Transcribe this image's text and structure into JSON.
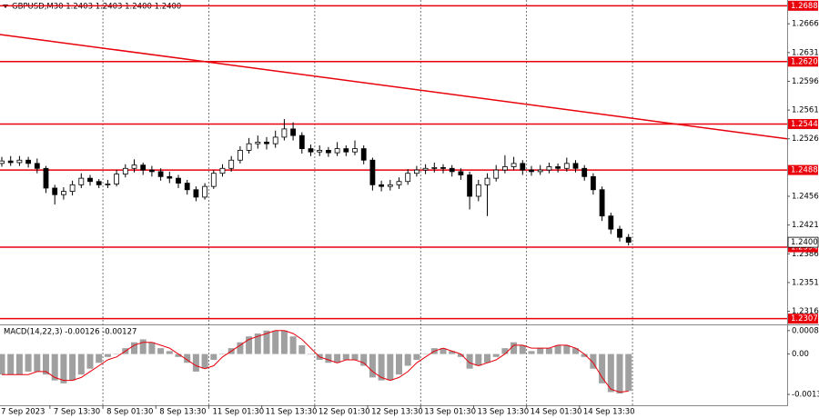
{
  "chart_data": [
    {
      "type": "candlestick",
      "title": "GBPUSD,M30  1.2403 1.2403 1.2400 1.2400",
      "x_labels": [
        "7 Sep 2023",
        "7 Sep 13:30",
        "8 Sep 01:30",
        "8 Sep 13:30",
        "11 Sep 01:30",
        "11 Sep 13:30",
        "12 Sep 01:30",
        "12 Sep 13:30",
        "13 Sep 01:30",
        "13 Sep 13:30",
        "14 Sep 01:30",
        "14 Sep 13:30",
        null
      ],
      "open": [
        1.2496,
        1.2499,
        1.2497,
        1.25,
        1.2496,
        1.249,
        1.2466,
        1.2458,
        1.2462,
        1.247,
        1.2478,
        1.2474,
        1.247,
        1.2471,
        1.2483,
        1.249,
        1.2494,
        1.2488,
        1.2486,
        1.248,
        1.2478,
        1.2472,
        1.2464,
        1.2455,
        1.2468,
        1.2484,
        1.249,
        1.25,
        1.2512,
        1.252,
        1.2522,
        1.252,
        1.2528,
        1.2538,
        1.253,
        1.2514,
        1.251,
        1.2512,
        1.2509,
        1.2514,
        1.251,
        1.2514,
        1.25,
        1.247,
        1.2468,
        1.247,
        1.2474,
        1.2484,
        1.2488,
        1.249,
        1.2491,
        1.249,
        1.2486,
        1.2482,
        1.2456,
        1.247,
        1.2478,
        1.2488,
        1.2492,
        1.2496,
        1.2488,
        1.2486,
        1.2488,
        1.2492,
        1.249,
        1.2496,
        1.249,
        1.248,
        1.2464,
        1.2432,
        1.2416,
        1.2406
      ],
      "high": [
        1.2504,
        1.2505,
        1.2505,
        1.2504,
        1.2502,
        1.2493,
        1.247,
        1.2467,
        1.2475,
        1.2484,
        1.2482,
        1.2477,
        1.2476,
        1.2488,
        1.2495,
        1.2501,
        1.2497,
        1.2493,
        1.249,
        1.2486,
        1.2482,
        1.2476,
        1.2468,
        1.2472,
        1.2488,
        1.2495,
        1.2505,
        1.2517,
        1.2527,
        1.253,
        1.2528,
        1.2536,
        1.255,
        1.2546,
        1.2534,
        1.2519,
        1.2518,
        1.2516,
        1.2522,
        1.2518,
        1.2524,
        1.2518,
        1.2503,
        1.2475,
        1.2476,
        1.2479,
        1.2489,
        1.2493,
        1.2495,
        1.2497,
        1.2495,
        1.2494,
        1.249,
        1.2486,
        1.2476,
        1.2484,
        1.2494,
        1.2506,
        1.2504,
        1.25,
        1.2493,
        1.2494,
        1.2497,
        1.2496,
        1.2503,
        1.25,
        1.2494,
        1.2484,
        1.2468,
        1.2436,
        1.242,
        1.241
      ],
      "low": [
        1.2492,
        1.2493,
        1.2493,
        1.2491,
        1.2484,
        1.246,
        1.2446,
        1.2452,
        1.2457,
        1.2466,
        1.2469,
        1.2466,
        1.2466,
        1.2468,
        1.2479,
        1.2485,
        1.2482,
        1.248,
        1.2475,
        1.2472,
        1.2466,
        1.2458,
        1.245,
        1.2452,
        1.2465,
        1.248,
        1.2486,
        1.2496,
        1.2508,
        1.2514,
        1.2513,
        1.2515,
        1.2524,
        1.2524,
        1.2508,
        1.2505,
        1.2505,
        1.2504,
        1.2505,
        1.2505,
        1.2506,
        1.2495,
        1.2463,
        1.2462,
        1.2463,
        1.2465,
        1.247,
        1.248,
        1.2483,
        1.2485,
        1.2484,
        1.248,
        1.2476,
        1.244,
        1.245,
        1.2432,
        1.2474,
        1.2484,
        1.2488,
        1.2482,
        1.2481,
        1.2482,
        1.2484,
        1.2485,
        1.2486,
        1.2485,
        1.2475,
        1.2458,
        1.2426,
        1.241,
        1.2401,
        1.2396
      ],
      "close": [
        1.2499,
        1.2497,
        1.25,
        1.2496,
        1.249,
        1.2466,
        1.2458,
        1.2462,
        1.247,
        1.2478,
        1.2474,
        1.247,
        1.2471,
        1.2483,
        1.249,
        1.2494,
        1.2488,
        1.2486,
        1.248,
        1.2478,
        1.2472,
        1.2464,
        1.2455,
        1.2468,
        1.2484,
        1.249,
        1.25,
        1.2512,
        1.252,
        1.2522,
        1.252,
        1.2528,
        1.2538,
        1.253,
        1.2514,
        1.251,
        1.2512,
        1.2509,
        1.2514,
        1.251,
        1.2514,
        1.25,
        1.247,
        1.2468,
        1.247,
        1.2474,
        1.2484,
        1.2488,
        1.249,
        1.2491,
        1.249,
        1.2486,
        1.2482,
        1.2456,
        1.247,
        1.2478,
        1.2488,
        1.2492,
        1.2496,
        1.2488,
        1.2486,
        1.2488,
        1.2492,
        1.249,
        1.2496,
        1.249,
        1.248,
        1.2464,
        1.2432,
        1.2416,
        1.2406,
        1.24
      ],
      "ylim": [
        1.23,
        1.2695
      ],
      "yticks": [
        1.2666,
        1.2631,
        1.2596,
        1.2561,
        1.2526,
        1.2456,
        1.2421,
        1.2386,
        1.2351,
        1.2316
      ],
      "levels": [
        1.2688,
        {
          "value": 1.262,
          "label": "1.2620"
        },
        1.2544,
        1.2488,
        1.2394,
        1.2307
      ],
      "level_color": "#e8000b",
      "current_price": {
        "value": 1.24,
        "label": "1.2400"
      },
      "trendline": [
        1.2653,
        1.2526
      ],
      "grid": true
    },
    {
      "type": "macd",
      "title": "MACD(14,22,3) -0.00126 -0.00127",
      "histogram": [
        -0.0007,
        -0.0007,
        -0.0007,
        -0.0006,
        -0.0006,
        -0.0007,
        -0.0009,
        -0.001,
        -0.0009,
        -0.0007,
        -0.0005,
        -0.0003,
        -0.0001,
        0,
        0.0002,
        0.0004,
        0.0005,
        0.0004,
        0.0002,
        0.0001,
        -0.0001,
        -0.0003,
        -0.0006,
        -0.0005,
        -0.0002,
        0,
        0.0002,
        0.0004,
        0.0006,
        0.0007,
        0.0008,
        0.0008,
        0.0008,
        0.0006,
        0.0003,
        0,
        -0.0002,
        -0.0003,
        -0.0003,
        -0.0002,
        -0.0002,
        -0.0004,
        -0.0008,
        -0.0009,
        -0.0009,
        -0.0007,
        -0.0004,
        -0.0002,
        0,
        0.0002,
        0.0002,
        0.0001,
        -0.0001,
        -0.0005,
        -0.0004,
        -0.0003,
        -0.0001,
        0.0002,
        0.0004,
        0.0003,
        0.0001,
        0.0002,
        0.0002,
        0.0003,
        0.0003,
        0.0002,
        -0.0001,
        -0.0005,
        -0.001,
        -0.0013,
        -0.00135,
        -0.00126
      ],
      "signal": [
        -0.0007,
        -0.0007,
        -0.0007,
        -0.0007,
        -0.0006,
        -0.0006,
        -0.0008,
        -0.0009,
        -0.0009,
        -0.0008,
        -0.0006,
        -0.0004,
        -0.0002,
        -0.0001,
        0.0001,
        0.0003,
        0.0004,
        0.0004,
        0.0003,
        0.0002,
        0,
        -0.0002,
        -0.0004,
        -0.0005,
        -0.0004,
        -0.0001,
        0.0001,
        0.0003,
        0.0005,
        0.0006,
        0.0007,
        0.0008,
        0.0008,
        0.0007,
        0.0005,
        0.0002,
        -0.0001,
        -0.0002,
        -0.0003,
        -0.0002,
        -0.0002,
        -0.0003,
        -0.0006,
        -0.0008,
        -0.0009,
        -0.0008,
        -0.0006,
        -0.0003,
        -0.0001,
        0.0001,
        0.0002,
        0.0001,
        0,
        -0.0003,
        -0.0004,
        -0.0003,
        -0.0002,
        0,
        0.0003,
        0.0003,
        0.0002,
        0.0002,
        0.0002,
        0.0003,
        0.0003,
        0.0002,
        0,
        -0.0003,
        -0.0008,
        -0.0012,
        -0.0013,
        -0.00127
      ],
      "histogram_color": "#a0a0a0",
      "signal_color": "#e8000b",
      "ylim": [
        -0.00175,
        0.00098
      ],
      "yticks": [
        0.0008,
        {
          "value": 0,
          "label": "0.00"
        },
        -0.00138
      ]
    }
  ]
}
